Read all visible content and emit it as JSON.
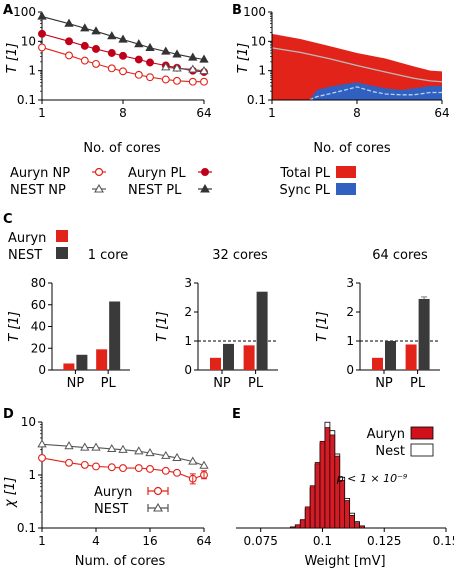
{
  "chart_data": [
    {
      "panel": "A",
      "type": "line",
      "ylabel": "T [1]",
      "xlabel": "No. of cores",
      "xscale": "log",
      "yscale": "log",
      "xlim": [
        1,
        64
      ],
      "ylim": [
        0.1,
        100
      ],
      "xticks": [
        "1",
        "8",
        "64"
      ],
      "yticks": [
        "0.1",
        "1",
        "10",
        "100"
      ],
      "grid": false,
      "series": [
        {
          "name": "Auryn NP",
          "color": "#e2231a",
          "marker": "open-circle",
          "x": [
            1,
            2,
            3,
            4,
            6,
            8,
            12,
            16,
            24,
            32,
            48,
            64
          ],
          "y": [
            6.2,
            3.3,
            2.2,
            1.7,
            1.2,
            0.95,
            0.72,
            0.6,
            0.5,
            0.45,
            0.42,
            0.42
          ]
        },
        {
          "name": "Auryn PL",
          "color": "#c0001a",
          "marker": "filled-circle",
          "x": [
            1,
            2,
            3,
            4,
            6,
            8,
            12,
            16,
            24,
            32,
            48,
            64
          ],
          "y": [
            18,
            10,
            7,
            5.5,
            4,
            3.2,
            2.4,
            1.9,
            1.5,
            1.25,
            1.0,
            0.9
          ]
        },
        {
          "name": "NEST NP",
          "color": "#555555",
          "marker": "open-triangle",
          "x": [
            24,
            32,
            48,
            64
          ],
          "y": [
            1.3,
            1.2,
            1.1,
            0.97
          ]
        },
        {
          "name": "NEST PL",
          "color": "#333333",
          "marker": "filled-triangle",
          "x": [
            1,
            2,
            3,
            4,
            6,
            8,
            12,
            16,
            24,
            32,
            48,
            64
          ],
          "y": [
            70,
            40,
            28,
            22,
            15,
            11.5,
            8,
            6,
            4.5,
            3.6,
            2.8,
            2.4
          ]
        }
      ]
    },
    {
      "panel": "B",
      "type": "area",
      "ylabel": "T [1]",
      "xlabel": "No. of cores",
      "xscale": "log",
      "yscale": "log",
      "xlim": [
        1,
        64
      ],
      "ylim": [
        0.1,
        100
      ],
      "xticks": [
        "1",
        "8",
        "64"
      ],
      "yticks": [
        "0.1",
        "1",
        "10",
        "100"
      ],
      "series": [
        {
          "name": "Total PL",
          "color": "#e2231a",
          "x": [
            1,
            2,
            4,
            8,
            16,
            32,
            48,
            64
          ],
          "upper": [
            18,
            12,
            7,
            4,
            2.6,
            1.4,
            1.0,
            0.95
          ],
          "mean": [
            6,
            4.2,
            2.6,
            1.5,
            0.9,
            0.55,
            0.45,
            0.42
          ]
        },
        {
          "name": "Sync PL",
          "color": "#3060c0",
          "x": [
            2.5,
            3,
            4,
            6,
            8,
            12,
            16,
            24,
            32,
            48,
            64
          ],
          "upper": [
            0.1,
            0.22,
            0.28,
            0.35,
            0.4,
            0.3,
            0.25,
            0.22,
            0.25,
            0.3,
            0.3
          ],
          "mean": [
            0.1,
            0.13,
            0.16,
            0.22,
            0.28,
            0.19,
            0.16,
            0.15,
            0.15,
            0.18,
            0.18
          ]
        }
      ]
    },
    {
      "panel": "C",
      "type": "bar",
      "ylabel": "T [1]",
      "series_names": [
        "Auryn",
        "NEST"
      ],
      "colors": [
        "#e2231a",
        "#3a3a3a"
      ],
      "subplots": [
        {
          "title": "1 core",
          "categories": [
            "NP",
            "PL"
          ],
          "ylim": [
            0,
            80
          ],
          "yticks": [
            "0",
            "20",
            "40",
            "60",
            "80"
          ],
          "values": [
            [
              6,
              19
            ],
            [
              14,
              63
            ]
          ],
          "refline": null
        },
        {
          "title": "32 cores",
          "categories": [
            "NP",
            "PL"
          ],
          "ylim": [
            0,
            3
          ],
          "yticks": [
            "0",
            "1",
            "2",
            "3"
          ],
          "values": [
            [
              0.42,
              0.85
            ],
            [
              0.9,
              2.7
            ]
          ],
          "refline": 1
        },
        {
          "title": "64 cores",
          "categories": [
            "NP",
            "PL"
          ],
          "ylim": [
            0,
            3
          ],
          "yticks": [
            "0",
            "1",
            "2",
            "3"
          ],
          "values": [
            [
              0.42,
              0.88
            ],
            [
              1.0,
              2.45
            ]
          ],
          "refline": 1
        }
      ]
    },
    {
      "panel": "D",
      "type": "line",
      "ylabel": "χ [1]",
      "xlabel": "Num. of cores",
      "xscale": "log",
      "yscale": "log",
      "xlim": [
        1,
        64
      ],
      "ylim": [
        0.1,
        10
      ],
      "xticks": [
        "1",
        "4",
        "16",
        "64"
      ],
      "yticks": [
        "0.1",
        "1",
        "10"
      ],
      "series": [
        {
          "name": "Auryn",
          "color": "#e2231a",
          "marker": "open-circle",
          "x": [
            1,
            2,
            3,
            4,
            6,
            8,
            12,
            16,
            24,
            32,
            48,
            64
          ],
          "y": [
            2.1,
            1.7,
            1.55,
            1.45,
            1.4,
            1.35,
            1.35,
            1.3,
            1.2,
            1.1,
            0.85,
            1.0
          ]
        },
        {
          "name": "NEST",
          "color": "#555555",
          "marker": "open-triangle",
          "x": [
            1,
            2,
            3,
            4,
            6,
            8,
            12,
            16,
            24,
            32,
            48,
            64
          ],
          "y": [
            3.8,
            3.5,
            3.3,
            3.3,
            3.1,
            3.0,
            2.8,
            2.6,
            2.3,
            2.1,
            1.8,
            1.5
          ]
        }
      ]
    },
    {
      "panel": "E",
      "type": "histogram",
      "xlabel": "Weight [mV]",
      "xlim": [
        0.065,
        0.15
      ],
      "xticks": [
        "0.075",
        "0.1",
        "0.125",
        "0.15"
      ],
      "annotation": "p < 1 × 10⁻⁹",
      "series": [
        {
          "name": "Auryn",
          "color": "#d0101a"
        },
        {
          "name": "Nest",
          "color": "#ffffff"
        }
      ],
      "bins": [
        0.087,
        0.089,
        0.091,
        0.093,
        0.095,
        0.097,
        0.099,
        0.101,
        0.103,
        0.105,
        0.107,
        0.109,
        0.111,
        0.113,
        0.115,
        0.117
      ],
      "auryn_counts": [
        1,
        3,
        8,
        20,
        40,
        62,
        82,
        95,
        88,
        68,
        45,
        26,
        12,
        5,
        2
      ],
      "nest_counts": [
        1,
        3,
        7,
        18,
        38,
        60,
        80,
        100,
        92,
        70,
        48,
        28,
        14,
        6,
        2
      ]
    }
  ],
  "legends": {
    "A": {
      "auryn_np": "Auryn NP",
      "auryn_pl": "Auryn PL",
      "nest_np": "NEST NP",
      "nest_pl": "NEST PL"
    },
    "B": {
      "total": "Total PL",
      "sync": "Sync PL"
    },
    "C": {
      "auryn": "Auryn",
      "nest": "NEST"
    },
    "D": {
      "auryn": "Auryn",
      "nest": "NEST"
    },
    "E": {
      "auryn": "Auryn",
      "nest": "Nest"
    }
  },
  "panel_labels": [
    "A",
    "B",
    "C",
    "D",
    "E"
  ]
}
